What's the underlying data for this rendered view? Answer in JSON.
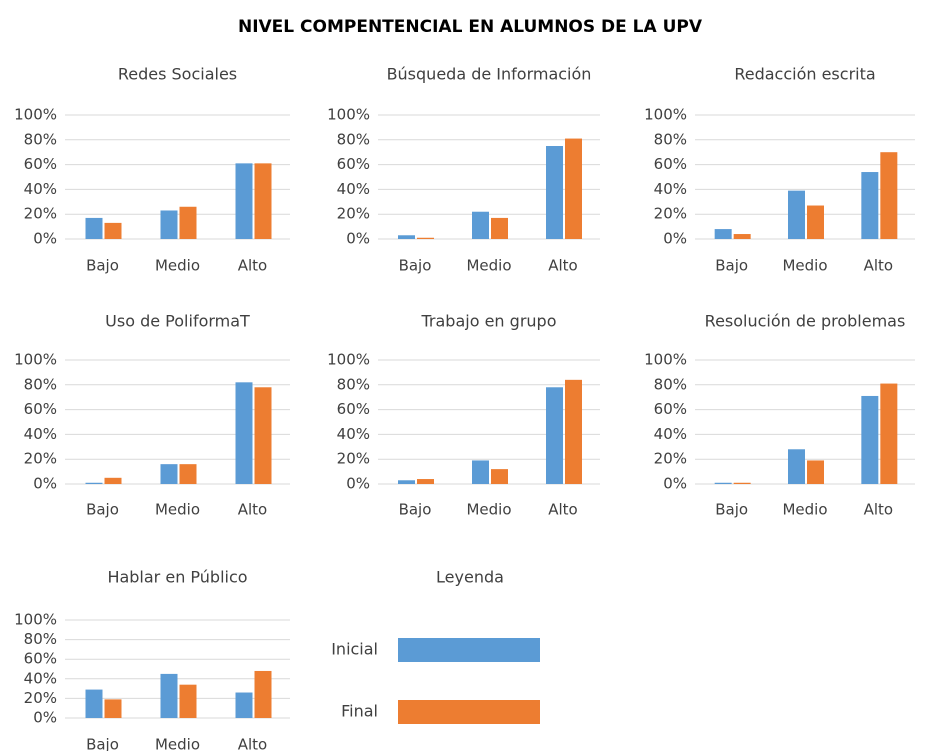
{
  "title": "NIVEL COMPENTENCIAL EN ALUMNOS DE LA UPV",
  "legend": {
    "title": "Leyenda",
    "entries": [
      {
        "name": "Inicial",
        "color": "#5b9bd5"
      },
      {
        "name": "Final",
        "color": "#ed7d31"
      }
    ]
  },
  "chart_data": [
    {
      "type": "bar",
      "title": "Redes Sociales",
      "categories": [
        "Bajo",
        "Medio",
        "Alto"
      ],
      "series": [
        {
          "values": [
            17,
            23,
            61
          ]
        },
        {
          "values": [
            13,
            26,
            61
          ]
        }
      ],
      "ylim": [
        0,
        100
      ],
      "yticks": [
        {
          "value": 0,
          "label": "0%"
        },
        {
          "value": 20,
          "label": "20%"
        },
        {
          "value": 40,
          "label": "40%"
        },
        {
          "value": 60,
          "label": "60%"
        },
        {
          "value": 80,
          "label": "80%"
        },
        {
          "value": 100,
          "label": "100%"
        }
      ],
      "grid": true
    },
    {
      "type": "bar",
      "title": "Búsqueda de Información",
      "categories": [
        "Bajo",
        "Medio",
        "Alto"
      ],
      "series": [
        {
          "values": [
            3,
            22,
            75
          ]
        },
        {
          "values": [
            1,
            17,
            81
          ]
        }
      ],
      "ylim": [
        0,
        100
      ],
      "yticks": [
        {
          "value": 0,
          "label": "0%"
        },
        {
          "value": 20,
          "label": "20%"
        },
        {
          "value": 40,
          "label": "40%"
        },
        {
          "value": 60,
          "label": "60%"
        },
        {
          "value": 80,
          "label": "80%"
        },
        {
          "value": 100,
          "label": "100%"
        }
      ],
      "grid": true
    },
    {
      "type": "bar",
      "title": "Redacción escrita",
      "categories": [
        "Bajo",
        "Medio",
        "Alto"
      ],
      "series": [
        {
          "values": [
            8,
            39,
            54
          ]
        },
        {
          "values": [
            4,
            27,
            70
          ]
        }
      ],
      "ylim": [
        0,
        100
      ],
      "yticks": [
        {
          "value": 0,
          "label": "0%"
        },
        {
          "value": 20,
          "label": "20%"
        },
        {
          "value": 40,
          "label": "40%"
        },
        {
          "value": 60,
          "label": "60%"
        },
        {
          "value": 80,
          "label": "80%"
        },
        {
          "value": 100,
          "label": "100%"
        }
      ],
      "grid": true
    },
    {
      "type": "bar",
      "title": "Uso de PoliformaT",
      "categories": [
        "Bajo",
        "Medio",
        "Alto"
      ],
      "series": [
        {
          "values": [
            1,
            16,
            82
          ]
        },
        {
          "values": [
            5,
            16,
            78
          ]
        }
      ],
      "ylim": [
        0,
        100
      ],
      "yticks": [
        {
          "value": 0,
          "label": "0%"
        },
        {
          "value": 20,
          "label": "20%"
        },
        {
          "value": 40,
          "label": "40%"
        },
        {
          "value": 60,
          "label": "60%"
        },
        {
          "value": 80,
          "label": "80%"
        },
        {
          "value": 100,
          "label": "100%"
        }
      ],
      "grid": true
    },
    {
      "type": "bar",
      "title": "Trabajo en grupo",
      "categories": [
        "Bajo",
        "Medio",
        "Alto"
      ],
      "series": [
        {
          "values": [
            3,
            19,
            78
          ]
        },
        {
          "values": [
            4,
            12,
            84
          ]
        }
      ],
      "ylim": [
        0,
        100
      ],
      "yticks": [
        {
          "value": 0,
          "label": "0%"
        },
        {
          "value": 20,
          "label": "20%"
        },
        {
          "value": 40,
          "label": "40%"
        },
        {
          "value": 60,
          "label": "60%"
        },
        {
          "value": 80,
          "label": "80%"
        },
        {
          "value": 100,
          "label": "100%"
        }
      ],
      "grid": true
    },
    {
      "type": "bar",
      "title": "Resolución de problemas",
      "categories": [
        "Bajo",
        "Medio",
        "Alto"
      ],
      "series": [
        {
          "values": [
            1,
            28,
            71
          ]
        },
        {
          "values": [
            1,
            19,
            81
          ]
        }
      ],
      "ylim": [
        0,
        100
      ],
      "yticks": [
        {
          "value": 0,
          "label": "0%"
        },
        {
          "value": 20,
          "label": "20%"
        },
        {
          "value": 40,
          "label": "40%"
        },
        {
          "value": 60,
          "label": "60%"
        },
        {
          "value": 80,
          "label": "80%"
        },
        {
          "value": 100,
          "label": "100%"
        }
      ],
      "grid": true
    },
    {
      "type": "bar",
      "title": "Hablar en Público",
      "categories": [
        "Bajo",
        "Medio",
        "Alto"
      ],
      "series": [
        {
          "values": [
            29,
            45,
            26
          ]
        },
        {
          "values": [
            19,
            34,
            48
          ]
        }
      ],
      "ylim": [
        0,
        100
      ],
      "yticks": [
        {
          "value": 0,
          "label": "0%"
        },
        {
          "value": 20,
          "label": "20%"
        },
        {
          "value": 40,
          "label": "40%"
        },
        {
          "value": 60,
          "label": "60%"
        },
        {
          "value": 80,
          "label": "80%"
        },
        {
          "value": 100,
          "label": "100%"
        }
      ],
      "grid": true
    }
  ]
}
